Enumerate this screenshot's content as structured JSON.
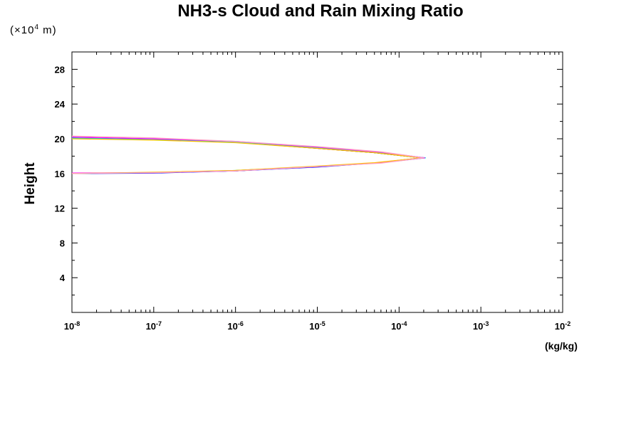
{
  "chart_data": {
    "type": "line",
    "title": "NH3-s Cloud and Rain Mixing Ratio",
    "ylabel": "Height",
    "y_unit": {
      "prefix": "(×10",
      "exponent": "4",
      "suffix": " m)"
    },
    "x_unit": "(kg/kg)",
    "xscale": "log",
    "xlim": [
      1e-08,
      0.01
    ],
    "ylim": [
      0,
      30
    ],
    "x_ticks": [
      {
        "base": "10",
        "exp": "-8",
        "value": 1e-08
      },
      {
        "base": "10",
        "exp": "-7",
        "value": 1e-07
      },
      {
        "base": "10",
        "exp": "-6",
        "value": 1e-06
      },
      {
        "base": "10",
        "exp": "-5",
        "value": 1e-05
      },
      {
        "base": "10",
        "exp": "-4",
        "value": 0.0001
      },
      {
        "base": "10",
        "exp": "-3",
        "value": 0.001
      },
      {
        "base": "10",
        "exp": "-2",
        "value": 0.01
      }
    ],
    "y_ticks": [
      "4",
      "8",
      "12",
      "16",
      "20",
      "24",
      "28"
    ],
    "grid": false,
    "series": [
      {
        "color": "#000000",
        "x": [
          1e-08,
          1e-07,
          1e-06,
          1e-05,
          5e-05,
          0.00019,
          5e-05,
          1e-05,
          1e-06,
          1e-07,
          1e-08
        ],
        "y": [
          16.0,
          16.1,
          16.3,
          16.8,
          17.2,
          17.8,
          18.4,
          18.9,
          19.6,
          19.9,
          20.1
        ]
      },
      {
        "color": "#ff0000",
        "x": [
          1e-08,
          1e-07,
          1e-06,
          1e-05,
          5e-05,
          0.0002,
          5e-05,
          1e-05,
          1e-06,
          1e-07,
          1e-08
        ],
        "y": [
          16.0,
          16.1,
          16.3,
          16.8,
          17.2,
          17.8,
          18.4,
          18.9,
          19.6,
          19.9,
          20.1
        ]
      },
      {
        "color": "#00c000",
        "x": [
          1e-08,
          1e-07,
          1e-06,
          1e-05,
          5e-05,
          0.000195,
          5e-05,
          1e-05,
          1e-06,
          1e-07,
          1e-08
        ],
        "y": [
          16.0,
          16.1,
          16.35,
          16.8,
          17.2,
          17.8,
          18.4,
          18.95,
          19.6,
          19.9,
          20.1
        ]
      },
      {
        "color": "#0000ff",
        "x": [
          1e-08,
          1e-07,
          1e-06,
          1e-05,
          5e-05,
          0.0002,
          5e-05,
          1e-05,
          1e-06,
          1e-07,
          1e-08
        ],
        "y": [
          16.0,
          16.05,
          16.3,
          16.75,
          17.2,
          17.8,
          18.45,
          19.0,
          19.65,
          19.95,
          20.1
        ]
      },
      {
        "color": "#00e0e0",
        "x": [
          1e-08,
          1e-07,
          1e-06,
          1e-05,
          6e-05,
          0.00021,
          6e-05,
          1e-05,
          1e-06,
          1e-07,
          1e-08
        ],
        "y": [
          16.0,
          16.1,
          16.3,
          16.8,
          17.25,
          17.8,
          18.4,
          18.95,
          19.6,
          19.9,
          20.1
        ]
      },
      {
        "color": "#ff00ff",
        "x": [
          1e-08,
          1e-07,
          1e-06,
          1e-05,
          6e-05,
          0.000205,
          6e-05,
          1e-05,
          1e-06,
          1e-07,
          1e-08
        ],
        "y": [
          16.05,
          16.1,
          16.3,
          16.8,
          17.25,
          17.8,
          18.45,
          19.05,
          19.7,
          20.0,
          20.2
        ]
      },
      {
        "color": "#ffc000",
        "x": [
          1e-08,
          1e-07,
          1e-06,
          1e-05,
          5e-05,
          0.00019,
          5e-05,
          1e-05,
          1e-06,
          1e-07,
          1e-08
        ],
        "y": [
          16.0,
          16.15,
          16.35,
          16.85,
          17.25,
          17.8,
          18.4,
          18.9,
          19.55,
          19.85,
          20.0
        ]
      },
      {
        "color": "#ffa0c0",
        "x": [
          1e-08,
          1e-07,
          1e-06,
          1e-05,
          6e-05,
          0.0002,
          6e-05,
          1e-05,
          1e-06,
          1e-07,
          1e-08
        ],
        "y": [
          16.0,
          16.1,
          16.3,
          16.8,
          17.2,
          17.8,
          18.5,
          19.1,
          19.7,
          20.1,
          20.3
        ]
      }
    ]
  }
}
